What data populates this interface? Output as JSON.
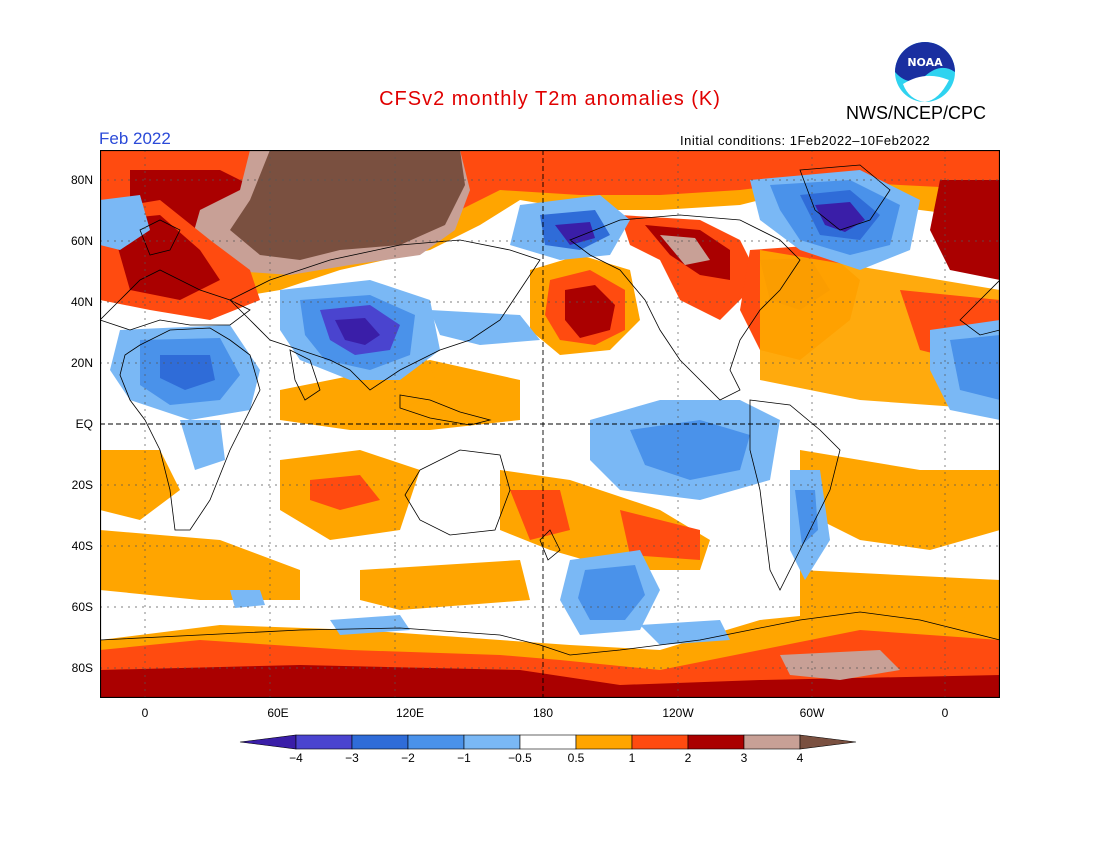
{
  "header": {
    "title": "CFSv2 monthly T2m anomalies (K)",
    "organization": "NWS/NCEP/CPC",
    "logo_text": "NOAA",
    "month": "Feb 2022",
    "initial_conditions": "Initial conditions: 1Feb2022–10Feb2022"
  },
  "axes": {
    "lat_labels": [
      "80N",
      "60N",
      "40N",
      "20N",
      "EQ",
      "20S",
      "40S",
      "60S",
      "80S"
    ],
    "lon_labels": [
      "0",
      "60E",
      "120E",
      "180",
      "120W",
      "60W",
      "0"
    ]
  },
  "colorbar": {
    "labels": [
      "-4",
      "-3",
      "-2",
      "-1",
      "-0.5",
      "0.5",
      "1",
      "2",
      "3",
      "4"
    ],
    "colors": [
      "#3a1ea8",
      "#4a44cf",
      "#2f6cd8",
      "#4a92ea",
      "#7ab8f5",
      "#ffffff",
      "#ffa500",
      "#ff4b10",
      "#aa0000",
      "#c8a096",
      "#7a5040"
    ]
  },
  "colors": {
    "warm_1": "#ffa500",
    "warm_2": "#ff4b10",
    "warm_3": "#aa0000",
    "warm_4": "#c8a096",
    "warm_5": "#7a5040",
    "cool_1": "#7ab8f5",
    "cool_2": "#4a92ea",
    "cool_3": "#2f6cd8",
    "cool_4": "#4a44cf",
    "cool_5": "#3a1ea8"
  }
}
